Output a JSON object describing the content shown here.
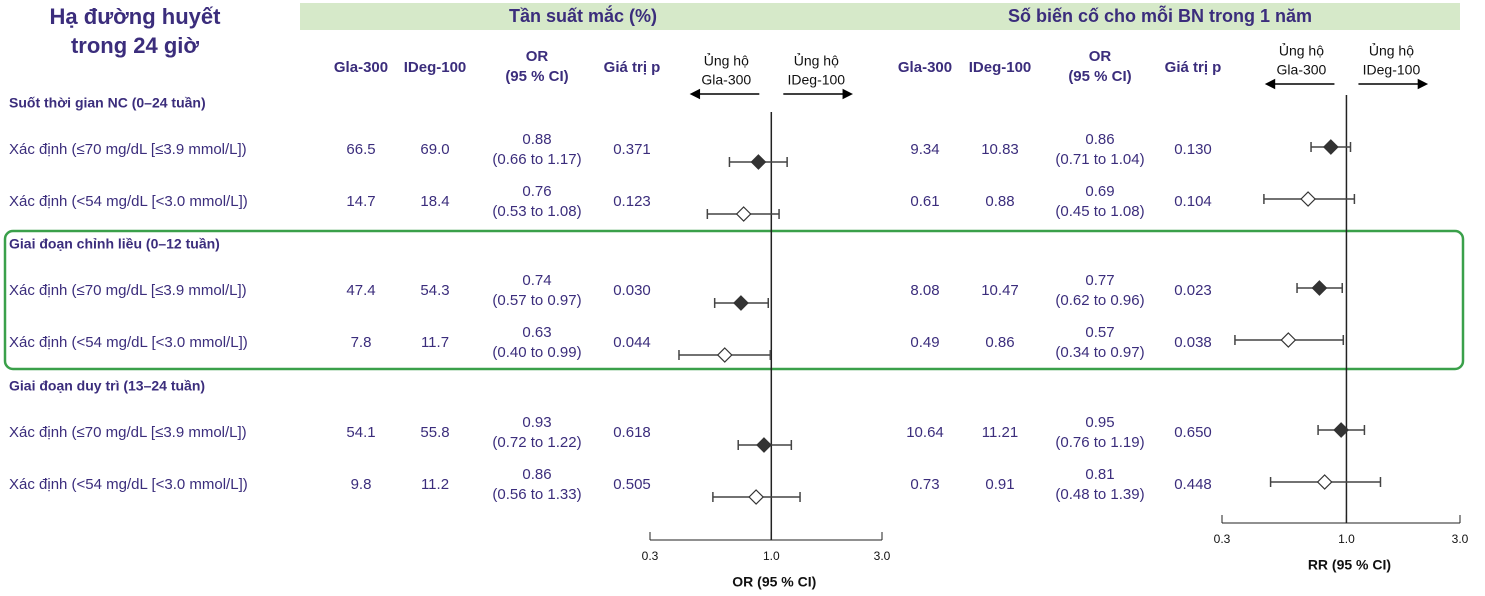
{
  "title": [
    "Hạ đường huyết",
    "trong 24 giờ"
  ],
  "sections": [
    {
      "title": "Suốt thời gian NC (0–24 tuần)",
      "rows": [
        "Xác định (≤70 mg/dL [≤3.9 mmol/L])",
        "Xác định (<54 mg/dL [<3.0 mmol/L])"
      ]
    },
    {
      "title": "Giai đoạn chỉnh liều (0–12 tuần)",
      "rows": [
        "Xác định  (≤70 mg/dL [≤3.9 mmol/L])",
        "Xác định (<54 mg/dL [<3.0 mmol/L])"
      ]
    },
    {
      "title": "Giai đoạn duy trì (13–24 tuần)",
      "rows": [
        "Xác định (≤70 mg/dL [≤3.9 mmol/L])",
        "Xác định (<54 mg/dL [<3.0 mmol/L])"
      ]
    }
  ],
  "chart_data": [
    {
      "type": "forest",
      "title": "Tần suất mắc (%)",
      "columns": [
        "Gla-300",
        "IDeg-100"
      ],
      "or_header": [
        "OR",
        "(95 % CI)"
      ],
      "p_header": "Giá trị p",
      "favor_left": [
        "Ủng hộ",
        "Gla-300"
      ],
      "favor_right": [
        "Ủng hộ",
        "IDeg-100"
      ],
      "col1": [
        "66.5",
        "14.7",
        "47.4",
        "7.8",
        "54.1",
        "9.8"
      ],
      "col2": [
        "69.0",
        "18.4",
        "54.3",
        "11.7",
        "55.8",
        "11.2"
      ],
      "values": [
        0.88,
        0.76,
        0.74,
        0.63,
        0.93,
        0.86
      ],
      "lower": [
        0.66,
        0.53,
        0.57,
        0.4,
        0.72,
        0.56
      ],
      "upper": [
        1.17,
        1.08,
        0.97,
        0.99,
        1.22,
        1.33
      ],
      "ci_labels": [
        "(0.66 to 1.17)",
        "(0.53 to 1.08)",
        "(0.57 to 0.97)",
        "(0.40 to 0.99)",
        "(0.72 to 1.22)",
        "(0.56 to 1.33)"
      ],
      "p_values": [
        "0.371",
        "0.123",
        "0.030",
        "0.044",
        "0.618",
        "0.505"
      ],
      "filled": [
        true,
        false,
        true,
        false,
        true,
        false
      ],
      "log_scale": true,
      "xlim": [
        0.3,
        3
      ],
      "xticks": [
        0.3,
        {
          "value": 1,
          "label": "1.0"
        },
        {
          "value": 3,
          "label": "3.0"
        }
      ],
      "xlabel": "OR (95 % CI)"
    },
    {
      "type": "forest",
      "title": "Số biến cố cho mỗi BN trong 1 năm",
      "columns": [
        "Gla-300",
        "IDeg-100"
      ],
      "or_header": [
        "OR",
        "(95 % CI)"
      ],
      "p_header": "Giá trị p",
      "favor_left": [
        "Ủng hộ",
        "Gla-300"
      ],
      "favor_right": [
        "Ủng hộ",
        "IDeg-100"
      ],
      "col1": [
        "9.34",
        "0.61",
        "8.08",
        "0.49",
        "10.64",
        "0.73"
      ],
      "col2": [
        "10.83",
        "0.88",
        "10.47",
        "0.86",
        "11.21",
        "0.91"
      ],
      "values": [
        0.86,
        0.69,
        0.77,
        0.57,
        0.95,
        0.81
      ],
      "lower": [
        0.71,
        0.45,
        0.62,
        0.34,
        0.76,
        0.48
      ],
      "upper": [
        1.04,
        1.08,
        0.96,
        0.97,
        1.19,
        1.39
      ],
      "ci_labels": [
        "(0.71 to 1.04)",
        "(0.45 to 1.08)",
        "(0.62 to 0.96)",
        "(0.34 to 0.97)",
        "(0.76 to 1.19)",
        "(0.48 to 1.39)"
      ],
      "p_values": [
        "0.130",
        "0.104",
        "0.023",
        "0.038",
        "0.650",
        "0.448"
      ],
      "filled": [
        true,
        false,
        true,
        false,
        true,
        false
      ],
      "log_scale": true,
      "xlim": [
        0.3,
        3
      ],
      "xticks": [
        0.3,
        {
          "value": 1,
          "label": "1.0"
        },
        {
          "value": 3,
          "label": "3.0"
        }
      ],
      "xlabel": "RR (95 % CI)"
    }
  ]
}
